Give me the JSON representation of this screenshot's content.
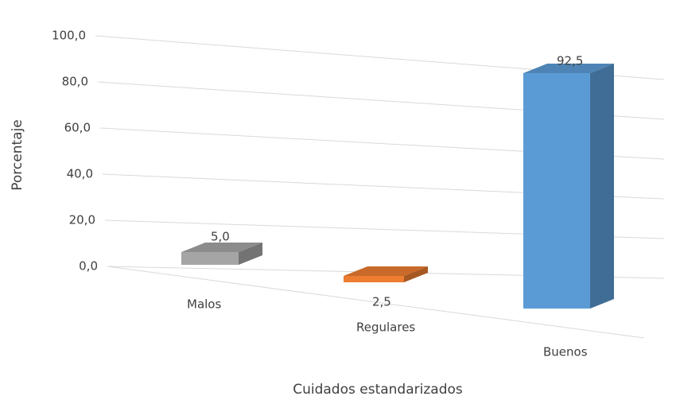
{
  "chart_data": {
    "type": "bar3d",
    "x_label": "Cuidados estandarizados",
    "y_label": "Porcentaje",
    "categories": [
      "Malos",
      "Regulares",
      "Buenos"
    ],
    "values": [
      5.0,
      2.5,
      92.5
    ],
    "value_labels": [
      "5,0",
      "2,5",
      "92,5"
    ],
    "colors": [
      "#a5a5a5",
      "#ed7d31",
      "#5b9bd5"
    ],
    "ylim": [
      0,
      100
    ],
    "yticks": [
      {
        "value": 0,
        "label": "0,0"
      },
      {
        "value": 20,
        "label": "20,0"
      },
      {
        "value": 40,
        "label": "40,0"
      },
      {
        "value": 60,
        "label": "60,0"
      },
      {
        "value": 80,
        "label": "80,0"
      },
      {
        "value": 100,
        "label": "100,0"
      }
    ],
    "grid": true
  }
}
